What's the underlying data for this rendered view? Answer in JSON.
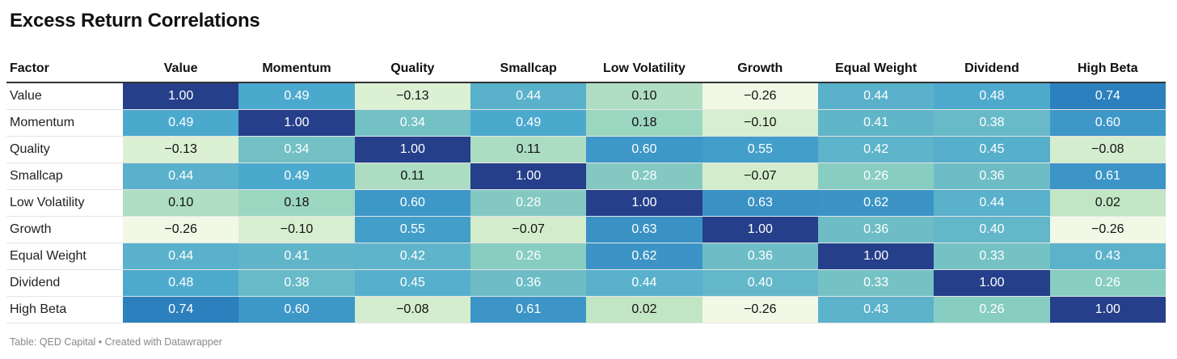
{
  "title": "Excess Return Correlations",
  "footer": "Table: QED Capital • Created with Datawrapper",
  "chart_data": {
    "type": "heatmap",
    "title": "Excess Return Correlations",
    "corner_label": "Factor",
    "columns": [
      "Value",
      "Momentum",
      "Quality",
      "Smallcap",
      "Low Volatility",
      "Growth",
      "Equal Weight",
      "Dividend",
      "High Beta"
    ],
    "rows": [
      {
        "label": "Value",
        "values": [
          "1.00",
          "0.49",
          "−0.13",
          "0.44",
          "0.10",
          "−0.26",
          "0.44",
          "0.48",
          "0.74"
        ]
      },
      {
        "label": "Momentum",
        "values": [
          "0.49",
          "1.00",
          "0.34",
          "0.49",
          "0.18",
          "−0.10",
          "0.41",
          "0.38",
          "0.60"
        ]
      },
      {
        "label": "Quality",
        "values": [
          "−0.13",
          "0.34",
          "1.00",
          "0.11",
          "0.60",
          "0.55",
          "0.42",
          "0.45",
          "−0.08"
        ]
      },
      {
        "label": "Smallcap",
        "values": [
          "0.44",
          "0.49",
          "0.11",
          "1.00",
          "0.28",
          "−0.07",
          "0.26",
          "0.36",
          "0.61"
        ]
      },
      {
        "label": "Low Volatility",
        "values": [
          "0.10",
          "0.18",
          "0.60",
          "0.28",
          "1.00",
          "0.63",
          "0.62",
          "0.44",
          "0.02"
        ]
      },
      {
        "label": "Growth",
        "values": [
          "−0.26",
          "−0.10",
          "0.55",
          "−0.07",
          "0.63",
          "1.00",
          "0.36",
          "0.40",
          "−0.26"
        ]
      },
      {
        "label": "Equal Weight",
        "values": [
          "0.44",
          "0.41",
          "0.42",
          "0.26",
          "0.62",
          "0.36",
          "1.00",
          "0.33",
          "0.43"
        ]
      },
      {
        "label": "Dividend",
        "values": [
          "0.48",
          "0.38",
          "0.45",
          "0.36",
          "0.44",
          "0.40",
          "0.33",
          "1.00",
          "0.26"
        ]
      },
      {
        "label": "High Beta",
        "values": [
          "0.74",
          "0.60",
          "−0.08",
          "0.61",
          "0.02",
          "−0.26",
          "0.43",
          "0.26",
          "1.00"
        ]
      }
    ],
    "color_scale": {
      "min": -0.26,
      "max": 1.0,
      "stops": [
        "#f1f8e6",
        "#c9e9c4",
        "#8ccfc0",
        "#4aa8ce",
        "#2b7fbc",
        "#253f8a"
      ]
    }
  }
}
